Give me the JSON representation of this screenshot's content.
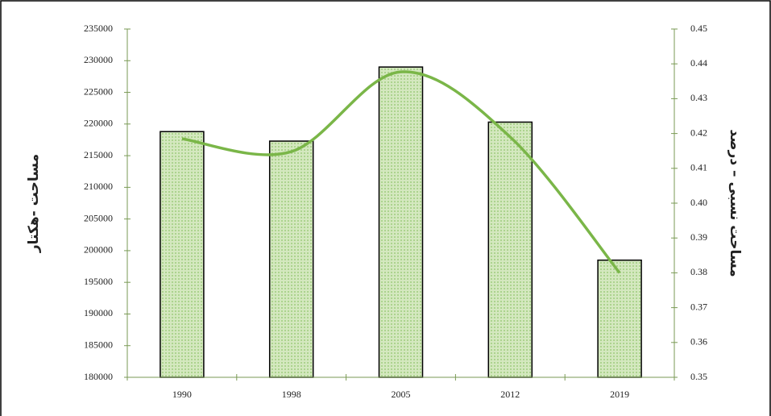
{
  "chart_data": {
    "type": "bar-line",
    "y_label": "مساحت -هکتار",
    "y2_label": "مساحت نسبی – درصد",
    "categories": [
      "1990",
      "1998",
      "2005",
      "2012",
      "2019"
    ],
    "bars": {
      "values": [
        218800,
        217300,
        229000,
        220300,
        198500
      ],
      "color": "#d4e8bf"
    },
    "line": {
      "values": [
        0.4185,
        0.4148,
        0.4377,
        0.419,
        0.38
      ],
      "color": "#7ab648",
      "axis": "y2",
      "smooth": true
    },
    "ylim": [
      180000,
      235000
    ],
    "yticks": [
      180000,
      185000,
      190000,
      195000,
      200000,
      205000,
      210000,
      215000,
      220000,
      225000,
      230000,
      235000
    ],
    "y2lim": [
      0.35,
      0.45
    ],
    "y2ticks": [
      0.35,
      0.36,
      0.37,
      0.38,
      0.39,
      {
        "value": 0.4,
        "label": "0.40"
      },
      0.41,
      0.42,
      0.43,
      0.44,
      0.45
    ]
  }
}
